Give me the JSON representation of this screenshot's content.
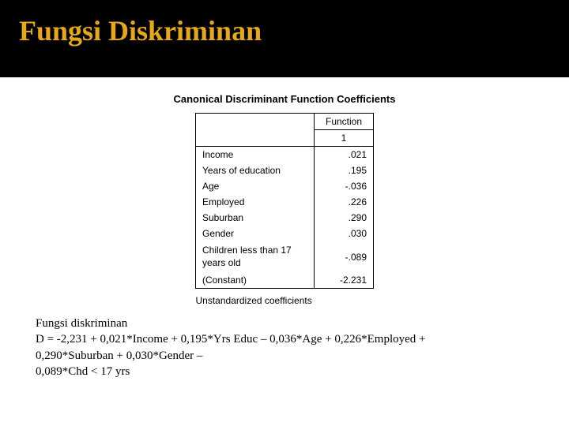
{
  "slide": {
    "title": "Fungsi Diskriminan",
    "title_color": "#e6a817",
    "title_bg": "#000000"
  },
  "table": {
    "title": "Canonical Discriminant Function Coefficients",
    "header_function": "Function",
    "header_col": "1",
    "rows": [
      {
        "label": "Income",
        "value": ".021"
      },
      {
        "label": "Years of education",
        "value": ".195"
      },
      {
        "label": "Age",
        "value": "-.036"
      },
      {
        "label": "Employed",
        "value": ".226"
      },
      {
        "label": "Suburban",
        "value": ".290"
      },
      {
        "label": "Gender",
        "value": ".030"
      },
      {
        "label": "Children less than 17 years old",
        "value": "-.089"
      },
      {
        "label": "(Constant)",
        "value": "-2.231"
      }
    ],
    "footnote": "Unstandardized coefficients"
  },
  "equation": {
    "label": "Fungsi diskriminan",
    "line1": "D = -2,231 + 0,021*Income + 0,195*Yrs Educ – 0,036*Age + 0,226*Employed +",
    "line2": "0,290*Suburban + 0,030*Gender –",
    "line3": "0,089*Chd < 17 yrs"
  }
}
